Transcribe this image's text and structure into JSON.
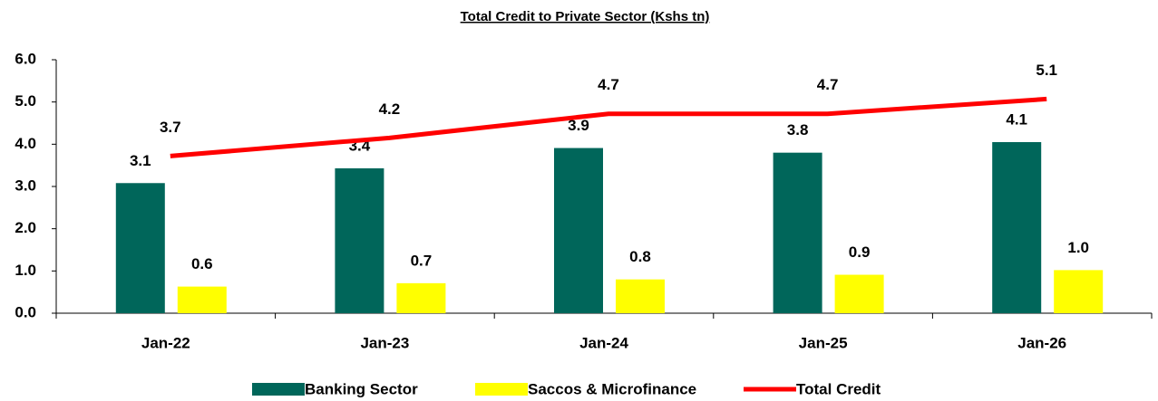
{
  "chart_data": {
    "type": "bar",
    "title": "Total Credit to Private Sector (Kshs tn)",
    "categories": [
      "Jan-22",
      "Jan-23",
      "Jan-24",
      "Jan-25",
      "Jan-26"
    ],
    "series": [
      {
        "name": "Banking Sector",
        "color": "#00665a",
        "values": [
          3.08,
          3.43,
          3.91,
          3.8,
          4.05
        ],
        "value_labels": [
          "3.1",
          "3.4",
          "3.9",
          "3.8",
          "4.1"
        ]
      },
      {
        "name": "Saccos & Microfinance",
        "color": "#ffff00",
        "values": [
          0.63,
          0.71,
          0.8,
          0.91,
          1.02
        ],
        "value_labels": [
          "0.6",
          "0.7",
          "0.8",
          "0.9",
          "1.0"
        ]
      },
      {
        "name": "Total Credit",
        "type": "line",
        "color": "#ff0000",
        "values": [
          3.72,
          4.15,
          4.72,
          4.72,
          5.07
        ],
        "value_labels": [
          "3.7",
          "4.2",
          "4.7",
          "4.7",
          "5.1"
        ]
      }
    ],
    "ylim": [
      0,
      6
    ],
    "yticks": [
      {
        "value": 0,
        "label": "0.0"
      },
      {
        "value": 1,
        "label": "1.0"
      },
      {
        "value": 2,
        "label": "2.0"
      },
      {
        "value": 3,
        "label": "3.0"
      },
      {
        "value": 4,
        "label": "4.0"
      },
      {
        "value": 5,
        "label": "5.0"
      },
      {
        "value": 6,
        "label": "6.0"
      }
    ],
    "grid": false,
    "legend": "bottom"
  }
}
